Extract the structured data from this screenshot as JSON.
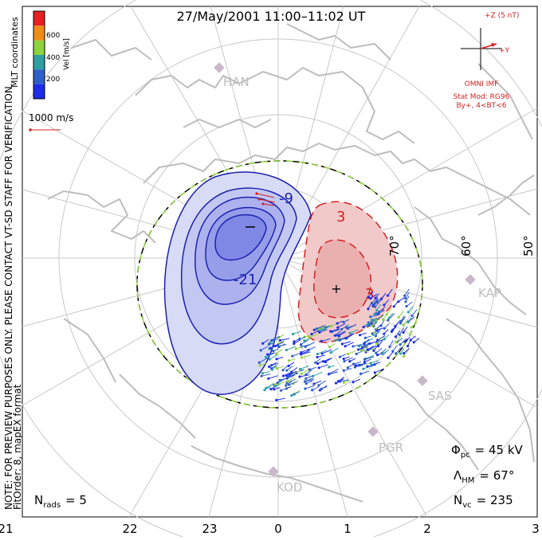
{
  "title": "27/May/2001  11:00–11:02  UT",
  "colorbar": {
    "label": "Vel [m/s]",
    "ticks": [
      "600",
      "400",
      "200"
    ],
    "colors": [
      "#e82020",
      "#f08c18",
      "#8ed23c",
      "#2fa0a0",
      "#2f5fc8",
      "#1e2ce8"
    ]
  },
  "coord_label": "MLT coordinates",
  "velocity_scale": "1000 m/s",
  "imf": {
    "z_label": "+Z (5 nT)",
    "y_label": "+Y",
    "source": "OMNI IMF",
    "model": "Stat Mod: RG96",
    "condition": "By+, 4<BT<6"
  },
  "preview_note": "NOTE: FOR PREVIEW PURPOSES ONLY. PLEASE CONTACT VT-SD STAFF FOR VERIFICATION.",
  "fit_order": "FitOrder: 8, mapEX format",
  "stations": [
    "HAN",
    "KAP",
    "SAS",
    "PGR",
    "KOD"
  ],
  "latitude_labels": [
    "70°",
    "60°",
    "50°"
  ],
  "contour_labels": {
    "neg_a": "-9",
    "neg_b": "-21",
    "pos_a": "3",
    "pos_b": "3"
  },
  "stats": {
    "phi_symbol": "Φ",
    "phi_sub": "pc",
    "phi_value": "= 45 kV",
    "lambda_symbol": "Λ",
    "lambda_sub": "HM",
    "lambda_value": "= 67°",
    "nvc_symbol": "N",
    "nvc_sub": "vc",
    "nvc_value": "= 235",
    "nrads_symbol": "N",
    "nrads_sub": "rads",
    "nrads_value": "= 5"
  },
  "mlt_axis": [
    "21",
    "22",
    "23",
    "0",
    "1",
    "2",
    "3"
  ],
  "colors": {
    "negative_fill": "#b8bff0",
    "negative_line": "#1c22b0",
    "positive_fill": "#f2c0c0",
    "positive_line": "#d42020",
    "grid": "#c8c8c8",
    "coast": "#bdbdbd"
  }
}
